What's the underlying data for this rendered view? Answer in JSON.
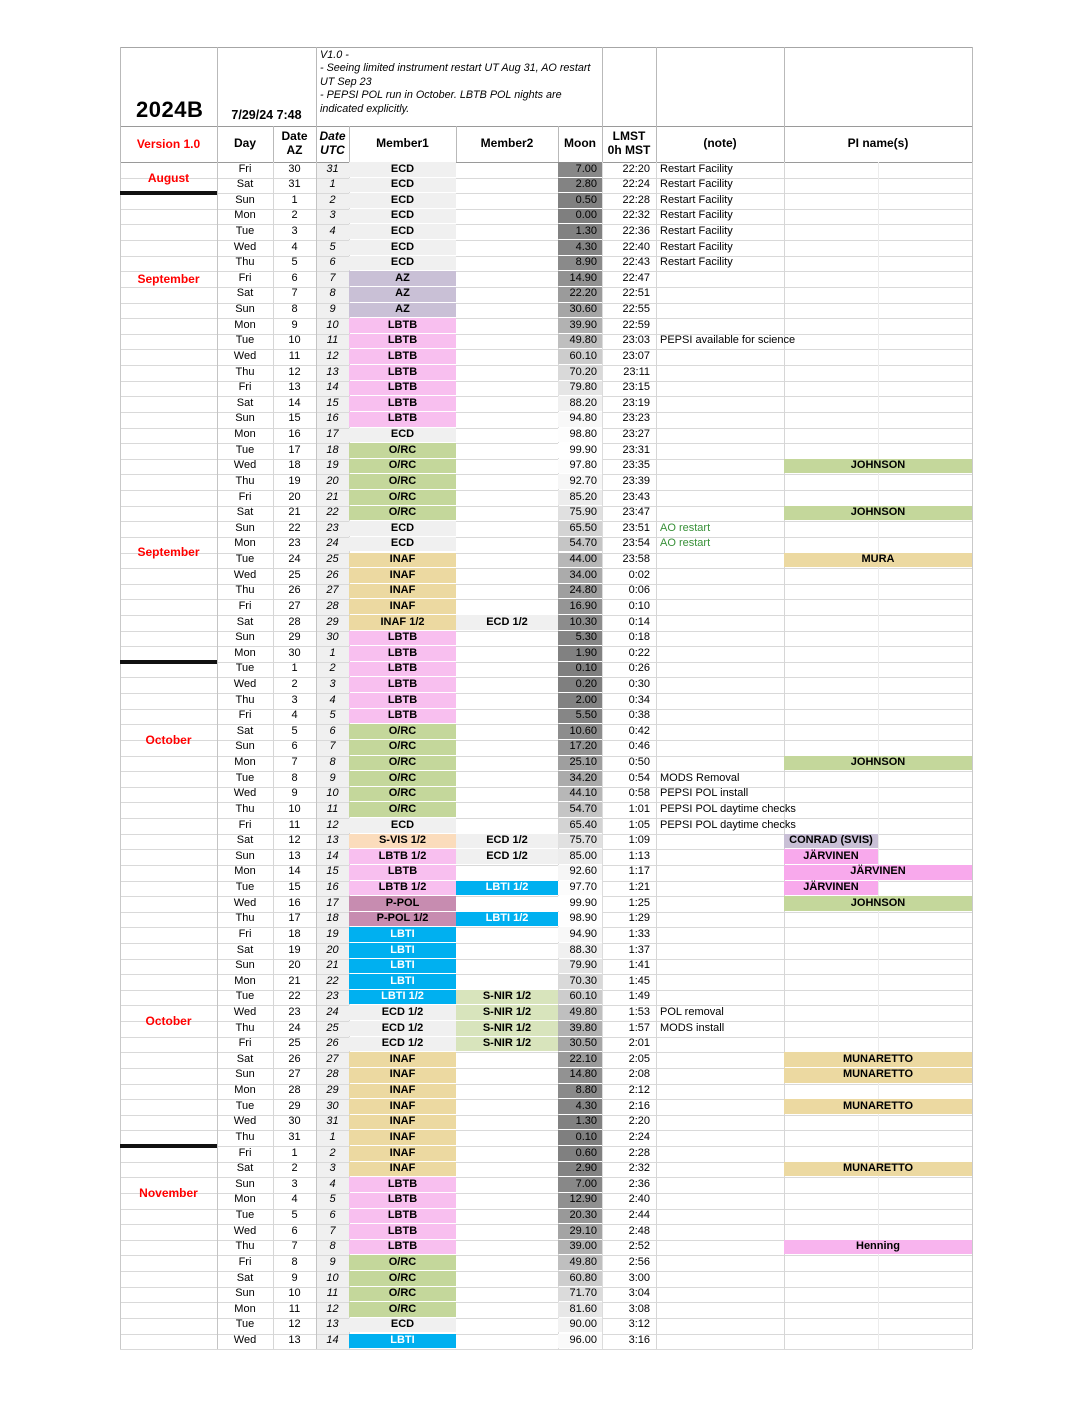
{
  "header": {
    "season": "2024B",
    "generated": "7/29/24 7:48",
    "version_label": "Version 1.0",
    "notes_lines": [
      "V1.0 -",
      "- Seeing limited instrument restart UT Aug 31, AO restart UT Sep 23",
      "- PEPSI POL run in October.  LBTB POL nights are indicated explicitly."
    ],
    "columns": [
      "Day",
      "Date\nAZ",
      "Date\nUTC",
      "Member1",
      "Member2",
      "Moon",
      "LMST\n0h MST",
      "(note)",
      "PI name(s)"
    ]
  },
  "colors": {
    "month_label": "#ff0000",
    "note_green": "#389038",
    "members": {
      "ECD": {
        "bg": "#f0f0f0",
        "text": "#000000"
      },
      "AZ": {
        "bg": "#c9c0d6",
        "text": "#000000"
      },
      "LBTB": {
        "bg": "#f8bfef",
        "text": "#000000"
      },
      "O/RC": {
        "bg": "#c4d79b",
        "text": "#000000"
      },
      "INAF": {
        "bg": "#ecd9a1",
        "text": "#000000"
      },
      "S-VIS": {
        "bg": "#fbdcbc",
        "text": "#000000"
      },
      "LBTI": {
        "bg": "#00b0f0",
        "text": "#ffffff"
      },
      "P-POL": {
        "bg": "#c78cb0",
        "text": "#000000"
      },
      "S-NIR": {
        "bg": "#d8e4bc",
        "text": "#000000"
      }
    },
    "pi": {
      "JOHNSON": "#c4d79b",
      "MURA": "#ecd9a1",
      "MUNARETTO": "#ecd9a1",
      "JÄRVINEN": "#f8a9ec",
      "CONRAD (SVIS)": "#c9c0d6",
      "Henning": "#f8b4ee"
    }
  },
  "row_fields": [
    "day",
    "date_az",
    "date_utc",
    "member1",
    "member2",
    "moon",
    "lmst",
    "note",
    "note_style",
    "pi_name",
    "pi_span"
  ],
  "rows": [
    [
      "Fri",
      "30",
      "31",
      "ECD",
      "",
      "7.00",
      "22:20",
      "Restart Facility",
      "",
      "",
      ""
    ],
    [
      "Sat",
      "31",
      "1",
      "ECD",
      "",
      "2.80",
      "22:24",
      "Restart Facility",
      "",
      "",
      ""
    ],
    [
      "Sun",
      "1",
      "2",
      "ECD",
      "",
      "0.50",
      "22:28",
      "Restart Facility",
      "",
      "",
      ""
    ],
    [
      "Mon",
      "2",
      "3",
      "ECD",
      "",
      "0.00",
      "22:32",
      "Restart Facility",
      "",
      "",
      ""
    ],
    [
      "Tue",
      "3",
      "4",
      "ECD",
      "",
      "1.30",
      "22:36",
      "Restart Facility",
      "",
      "",
      ""
    ],
    [
      "Wed",
      "4",
      "5",
      "ECD",
      "",
      "4.30",
      "22:40",
      "Restart Facility",
      "",
      "",
      ""
    ],
    [
      "Thu",
      "5",
      "6",
      "ECD",
      "",
      "8.90",
      "22:43",
      "Restart Facility",
      "",
      "",
      ""
    ],
    [
      "Fri",
      "6",
      "7",
      "AZ",
      "",
      "14.90",
      "22:47",
      "",
      "",
      "",
      ""
    ],
    [
      "Sat",
      "7",
      "8",
      "AZ",
      "",
      "22.20",
      "22:51",
      "",
      "",
      "",
      ""
    ],
    [
      "Sun",
      "8",
      "9",
      "AZ",
      "",
      "30.60",
      "22:55",
      "",
      "",
      "",
      ""
    ],
    [
      "Mon",
      "9",
      "10",
      "LBTB",
      "",
      "39.90",
      "22:59",
      "",
      "",
      "",
      ""
    ],
    [
      "Tue",
      "10",
      "11",
      "LBTB",
      "",
      "49.80",
      "23:03",
      "PEPSI available for science",
      "",
      "",
      ""
    ],
    [
      "Wed",
      "11",
      "12",
      "LBTB",
      "",
      "60.10",
      "23:07",
      "",
      "",
      "",
      ""
    ],
    [
      "Thu",
      "12",
      "13",
      "LBTB",
      "",
      "70.20",
      "23:11",
      "",
      "",
      "",
      ""
    ],
    [
      "Fri",
      "13",
      "14",
      "LBTB",
      "",
      "79.80",
      "23:15",
      "",
      "",
      "",
      ""
    ],
    [
      "Sat",
      "14",
      "15",
      "LBTB",
      "",
      "88.20",
      "23:19",
      "",
      "",
      "",
      ""
    ],
    [
      "Sun",
      "15",
      "16",
      "LBTB",
      "",
      "94.80",
      "23:23",
      "",
      "",
      "",
      ""
    ],
    [
      "Mon",
      "16",
      "17",
      "ECD",
      "",
      "98.80",
      "23:27",
      "",
      "",
      "",
      ""
    ],
    [
      "Tue",
      "17",
      "18",
      "O/RC",
      "",
      "99.90",
      "23:31",
      "",
      "",
      "",
      ""
    ],
    [
      "Wed",
      "18",
      "19",
      "O/RC",
      "",
      "97.80",
      "23:35",
      "",
      "",
      "JOHNSON",
      "full"
    ],
    [
      "Thu",
      "19",
      "20",
      "O/RC",
      "",
      "92.70",
      "23:39",
      "",
      "",
      "",
      ""
    ],
    [
      "Fri",
      "20",
      "21",
      "O/RC",
      "",
      "85.20",
      "23:43",
      "",
      "",
      "",
      ""
    ],
    [
      "Sat",
      "21",
      "22",
      "O/RC",
      "",
      "75.90",
      "23:47",
      "",
      "",
      "JOHNSON",
      "full"
    ],
    [
      "Sun",
      "22",
      "23",
      "ECD",
      "",
      "65.50",
      "23:51",
      "AO restart",
      "green",
      "",
      ""
    ],
    [
      "Mon",
      "23",
      "24",
      "ECD",
      "",
      "54.70",
      "23:54",
      "AO restart",
      "green",
      "",
      ""
    ],
    [
      "Tue",
      "24",
      "25",
      "INAF",
      "",
      "44.00",
      "23:58",
      "",
      "",
      "MURA",
      "full"
    ],
    [
      "Wed",
      "25",
      "26",
      "INAF",
      "",
      "34.00",
      "0:02",
      "",
      "",
      "",
      ""
    ],
    [
      "Thu",
      "26",
      "27",
      "INAF",
      "",
      "24.80",
      "0:06",
      "",
      "",
      "",
      ""
    ],
    [
      "Fri",
      "27",
      "28",
      "INAF",
      "",
      "16.90",
      "0:10",
      "",
      "",
      "",
      ""
    ],
    [
      "Sat",
      "28",
      "29",
      "INAF 1/2",
      "ECD 1/2",
      "10.30",
      "0:14",
      "",
      "",
      "",
      ""
    ],
    [
      "Sun",
      "29",
      "30",
      "LBTB",
      "",
      "5.30",
      "0:18",
      "",
      "",
      "",
      ""
    ],
    [
      "Mon",
      "30",
      "1",
      "LBTB",
      "",
      "1.90",
      "0:22",
      "",
      "",
      "",
      ""
    ],
    [
      "Tue",
      "1",
      "2",
      "LBTB",
      "",
      "0.10",
      "0:26",
      "",
      "",
      "",
      ""
    ],
    [
      "Wed",
      "2",
      "3",
      "LBTB",
      "",
      "0.20",
      "0:30",
      "",
      "",
      "",
      ""
    ],
    [
      "Thu",
      "3",
      "4",
      "LBTB",
      "",
      "2.00",
      "0:34",
      "",
      "",
      "",
      ""
    ],
    [
      "Fri",
      "4",
      "5",
      "LBTB",
      "",
      "5.50",
      "0:38",
      "",
      "",
      "",
      ""
    ],
    [
      "Sat",
      "5",
      "6",
      "O/RC",
      "",
      "10.60",
      "0:42",
      "",
      "",
      "",
      ""
    ],
    [
      "Sun",
      "6",
      "7",
      "O/RC",
      "",
      "17.20",
      "0:46",
      "",
      "",
      "",
      ""
    ],
    [
      "Mon",
      "7",
      "8",
      "O/RC",
      "",
      "25.10",
      "0:50",
      "",
      "",
      "JOHNSON",
      "full"
    ],
    [
      "Tue",
      "8",
      "9",
      "O/RC",
      "",
      "34.20",
      "0:54",
      "MODS Removal",
      "",
      "",
      ""
    ],
    [
      "Wed",
      "9",
      "10",
      "O/RC",
      "",
      "44.10",
      "0:58",
      "PEPSI POL install",
      "",
      "",
      ""
    ],
    [
      "Thu",
      "10",
      "11",
      "O/RC",
      "",
      "54.70",
      "1:01",
      "PEPSI POL daytime checks",
      "",
      "",
      ""
    ],
    [
      "Fri",
      "11",
      "12",
      "ECD",
      "",
      "65.40",
      "1:05",
      "PEPSI POL daytime checks",
      "",
      "",
      ""
    ],
    [
      "Sat",
      "12",
      "13",
      "S-VIS 1/2",
      "ECD 1/2",
      "75.70",
      "1:09",
      "",
      "",
      "CONRAD (SVIS)",
      "half"
    ],
    [
      "Sun",
      "13",
      "14",
      "LBTB 1/2",
      "ECD 1/2",
      "85.00",
      "1:13",
      "",
      "",
      "JÄRVINEN",
      "half"
    ],
    [
      "Mon",
      "14",
      "15",
      "LBTB",
      "",
      "92.60",
      "1:17",
      "",
      "",
      "JÄRVINEN",
      "full"
    ],
    [
      "Tue",
      "15",
      "16",
      "LBTB 1/2",
      "LBTI 1/2",
      "97.70",
      "1:21",
      "",
      "",
      "JÄRVINEN",
      "half"
    ],
    [
      "Wed",
      "16",
      "17",
      "P-POL",
      "",
      "99.90",
      "1:25",
      "",
      "",
      "JOHNSON",
      "full"
    ],
    [
      "Thu",
      "17",
      "18",
      "P-POL 1/2",
      "LBTI 1/2",
      "98.90",
      "1:29",
      "",
      "",
      "",
      ""
    ],
    [
      "Fri",
      "18",
      "19",
      "LBTI",
      "",
      "94.90",
      "1:33",
      "",
      "",
      "",
      ""
    ],
    [
      "Sat",
      "19",
      "20",
      "LBTI",
      "",
      "88.30",
      "1:37",
      "",
      "",
      "",
      ""
    ],
    [
      "Sun",
      "20",
      "21",
      "LBTI",
      "",
      "79.90",
      "1:41",
      "",
      "",
      "",
      ""
    ],
    [
      "Mon",
      "21",
      "22",
      "LBTI",
      "",
      "70.30",
      "1:45",
      "",
      "",
      "",
      ""
    ],
    [
      "Tue",
      "22",
      "23",
      "LBTI 1/2",
      "S-NIR 1/2",
      "60.10",
      "1:49",
      "",
      "",
      "",
      ""
    ],
    [
      "Wed",
      "23",
      "24",
      "ECD 1/2",
      "S-NIR 1/2",
      "49.80",
      "1:53",
      "POL removal",
      "",
      "",
      ""
    ],
    [
      "Thu",
      "24",
      "25",
      "ECD 1/2",
      "S-NIR 1/2",
      "39.80",
      "1:57",
      "MODS install",
      "",
      "",
      ""
    ],
    [
      "Fri",
      "25",
      "26",
      "ECD 1/2",
      "S-NIR 1/2",
      "30.50",
      "2:01",
      "",
      "",
      "",
      ""
    ],
    [
      "Sat",
      "26",
      "27",
      "INAF",
      "",
      "22.10",
      "2:05",
      "",
      "",
      "MUNARETTO",
      "full"
    ],
    [
      "Sun",
      "27",
      "28",
      "INAF",
      "",
      "14.80",
      "2:08",
      "",
      "",
      "MUNARETTO",
      "full"
    ],
    [
      "Mon",
      "28",
      "29",
      "INAF",
      "",
      "8.80",
      "2:12",
      "",
      "",
      "",
      ""
    ],
    [
      "Tue",
      "29",
      "30",
      "INAF",
      "",
      "4.30",
      "2:16",
      "",
      "",
      "MUNARETTO",
      "full"
    ],
    [
      "Wed",
      "30",
      "31",
      "INAF",
      "",
      "1.30",
      "2:20",
      "",
      "",
      "",
      ""
    ],
    [
      "Thu",
      "31",
      "1",
      "INAF",
      "",
      "0.10",
      "2:24",
      "",
      "",
      "",
      ""
    ],
    [
      "Fri",
      "1",
      "2",
      "INAF",
      "",
      "0.60",
      "2:28",
      "",
      "",
      "",
      ""
    ],
    [
      "Sat",
      "2",
      "3",
      "INAF",
      "",
      "2.90",
      "2:32",
      "",
      "",
      "MUNARETTO",
      "full"
    ],
    [
      "Sun",
      "3",
      "4",
      "LBTB",
      "",
      "7.00",
      "2:36",
      "",
      "",
      "",
      ""
    ],
    [
      "Mon",
      "4",
      "5",
      "LBTB",
      "",
      "12.90",
      "2:40",
      "",
      "",
      "",
      ""
    ],
    [
      "Tue",
      "5",
      "6",
      "LBTB",
      "",
      "20.30",
      "2:44",
      "",
      "",
      "",
      ""
    ],
    [
      "Wed",
      "6",
      "7",
      "LBTB",
      "",
      "29.10",
      "2:48",
      "",
      "",
      "",
      ""
    ],
    [
      "Thu",
      "7",
      "8",
      "LBTB",
      "",
      "39.00",
      "2:52",
      "",
      "",
      "Henning",
      "full"
    ],
    [
      "Fri",
      "8",
      "9",
      "O/RC",
      "",
      "49.80",
      "2:56",
      "",
      "",
      "",
      ""
    ],
    [
      "Sat",
      "9",
      "10",
      "O/RC",
      "",
      "60.80",
      "3:00",
      "",
      "",
      "",
      ""
    ],
    [
      "Sun",
      "10",
      "11",
      "O/RC",
      "",
      "71.70",
      "3:04",
      "",
      "",
      "",
      ""
    ],
    [
      "Mon",
      "11",
      "12",
      "O/RC",
      "",
      "81.60",
      "3:08",
      "",
      "",
      "",
      ""
    ],
    [
      "Tue",
      "12",
      "13",
      "ECD",
      "",
      "90.00",
      "3:12",
      "",
      "",
      "",
      ""
    ],
    [
      "Wed",
      "13",
      "14",
      "LBTI",
      "",
      "96.00",
      "3:16",
      "",
      "",
      "",
      ""
    ]
  ],
  "month_labels": [
    {
      "row": 0,
      "span": 2,
      "text": "August"
    },
    {
      "row": 7,
      "span": 1,
      "text": "September"
    },
    {
      "row": 24,
      "span": 2,
      "text": "September"
    },
    {
      "row": 36,
      "span": 2,
      "text": "October"
    },
    {
      "row": 54,
      "span": 2,
      "text": "October"
    },
    {
      "row": 65,
      "span": 2,
      "text": "November"
    }
  ],
  "month_breaks_after_rows": [
    1,
    31,
    62
  ]
}
